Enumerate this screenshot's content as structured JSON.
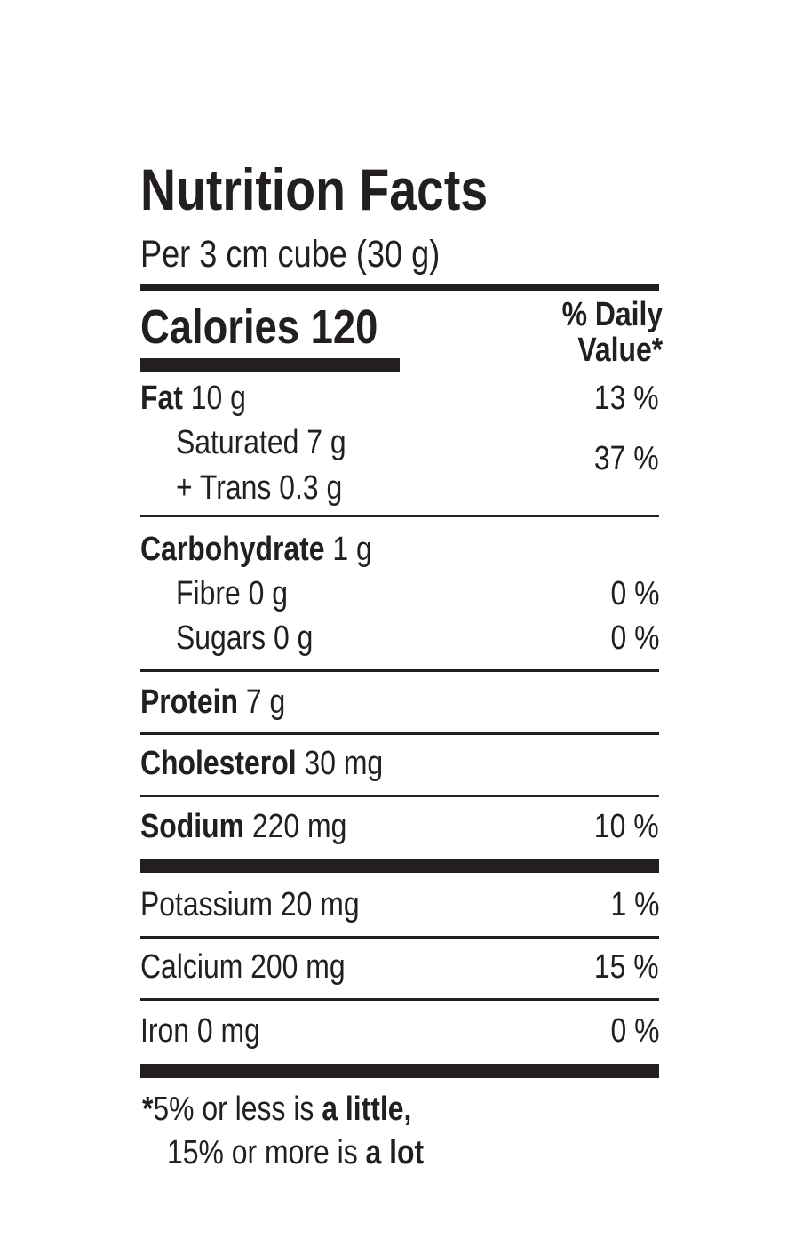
{
  "title": "Nutrition Facts",
  "serving": "Per 3 cm cube (30 g)",
  "calories": {
    "label": "Calories",
    "value": "120"
  },
  "daily_value_header": {
    "line1": "% Daily",
    "line2": "Value*"
  },
  "nutrients": {
    "fat": {
      "name": "Fat",
      "amount": "10 g",
      "dv": "13 %"
    },
    "saturated": {
      "name": "Saturated",
      "amount": "7 g"
    },
    "trans": {
      "name": "+ Trans",
      "amount": "0.3 g"
    },
    "sat_trans_dv": "37 %",
    "carbohydrate": {
      "name": "Carbohydrate",
      "amount": "1 g"
    },
    "fibre": {
      "name": "Fibre",
      "amount": "0 g",
      "dv": "0 %"
    },
    "sugars": {
      "name": "Sugars",
      "amount": "0 g",
      "dv": "0 %"
    },
    "protein": {
      "name": "Protein",
      "amount": "7 g"
    },
    "cholesterol": {
      "name": "Cholesterol",
      "amount": "30 mg"
    },
    "sodium": {
      "name": "Sodium",
      "amount": "220 mg",
      "dv": "10 %"
    },
    "potassium": {
      "name": "Potassium",
      "amount": "20 mg",
      "dv": "1 %"
    },
    "calcium": {
      "name": "Calcium",
      "amount": "200 mg",
      "dv": "15 %"
    },
    "iron": {
      "name": "Iron",
      "amount": "0 mg",
      "dv": "0 %"
    }
  },
  "footnote": {
    "star": "*",
    "line1_a": "5% or less is ",
    "line1_b": "a little,",
    "line2_a": "15% or more is ",
    "line2_b": "a lot"
  }
}
